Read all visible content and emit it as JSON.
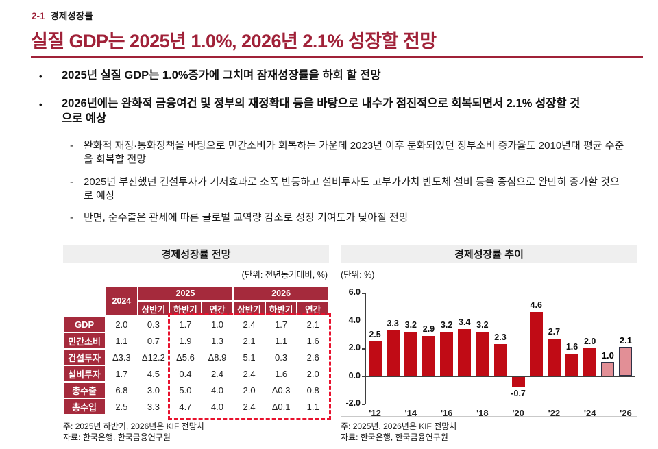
{
  "header": {
    "kicker_num": "2-1",
    "kicker_label": "경제성장률",
    "title": "실질 GDP는 2025년 1.0%, 2026년 2.1% 성장할 전망"
  },
  "bullets": [
    {
      "level": 1,
      "marker": "•",
      "text": "2025년 실질 GDP는 1.0%증가에 그치며 잠재성장률을 하회 할 전망"
    },
    {
      "level": 1,
      "marker": "•",
      "text": "2026년에는 완화적 금융여건 및 정부의 재정확대 등을 바탕으로 내수가 점진적으로 회복되면서 2.1% 성장할 것으로 예상"
    },
    {
      "level": 2,
      "marker": "-",
      "text": "완화적 재정·통화정책을 바탕으로 민간소비가 회복하는 가운데 2023년 이후 둔화되었던 정부소비 증가율도 2010년대 평균 수준을 회복할 전망"
    },
    {
      "level": 2,
      "marker": "-",
      "text": "2025년 부진했던 건설투자가 기저효과로 소폭 반등하고 설비투자도 고부가가치 반도체 설비 등을 중심으로 완만히 증가할 것으로 예상"
    },
    {
      "level": 2,
      "marker": "-",
      "text": "반면, 순수출은 관세에 따른 글로벌 교역량 감소로 성장 기여도가 낮아질 전망"
    }
  ],
  "table_panel": {
    "title": "경제성장률 전망",
    "unit": "(단위: 전년동기대비, %)",
    "col_groups": [
      {
        "label": "2024",
        "span": 1,
        "rowspan": 2
      },
      {
        "label": "2025",
        "span": 3
      },
      {
        "label": "2026",
        "span": 3
      }
    ],
    "sub_headers": [
      "상반기",
      "하반기",
      "연간",
      "상반기",
      "하반기",
      "연간"
    ],
    "rows": [
      {
        "label": "GDP",
        "values": [
          "2.0",
          "0.3",
          "1.7",
          "1.0",
          "2.4",
          "1.7",
          "2.1"
        ]
      },
      {
        "label": "민간소비",
        "values": [
          "1.1",
          "0.7",
          "1.9",
          "1.3",
          "2.1",
          "1.1",
          "1.6"
        ]
      },
      {
        "label": "건설투자",
        "values": [
          "Δ3.3",
          "Δ12.2",
          "Δ5.6",
          "Δ8.9",
          "5.1",
          "0.3",
          "2.6"
        ]
      },
      {
        "label": "설비투자",
        "values": [
          "1.7",
          "4.5",
          "0.4",
          "2.4",
          "2.4",
          "1.6",
          "2.0"
        ]
      },
      {
        "label": "총수출",
        "values": [
          "6.8",
          "3.0",
          "5.0",
          "4.0",
          "2.0",
          "Δ0.3",
          "0.8"
        ]
      },
      {
        "label": "총수입",
        "values": [
          "2.5",
          "3.3",
          "4.7",
          "4.0",
          "2.4",
          "Δ0.1",
          "1.1"
        ]
      }
    ],
    "note1": "주: 2025년 하반기, 2026년은 KIF 전망치",
    "note2": "자료: 한국은행, 한국금융연구원"
  },
  "chart_panel": {
    "title": "경제성장률 추이",
    "unit": "(단위: %)",
    "note1": "주: 2025년, 2026년은 KIF 전망치",
    "note2": "자료: 한국은행, 한국금융연구원"
  },
  "chart_data": {
    "type": "bar",
    "title": "경제성장률 추이",
    "unit_label": "(단위: %)",
    "x": [
      "'12",
      "'13",
      "'14",
      "'15",
      "'16",
      "'17",
      "'18",
      "'19",
      "'20",
      "'21",
      "'22",
      "'23",
      "'24",
      "'25",
      "'26"
    ],
    "values": [
      2.5,
      3.3,
      3.2,
      2.9,
      3.2,
      3.4,
      3.2,
      2.3,
      -0.7,
      4.6,
      2.7,
      1.6,
      2.0,
      1.0,
      2.1
    ],
    "forecast_indices": [
      13,
      14
    ],
    "xtick_shown": [
      "'12",
      "'14",
      "'16",
      "'18",
      "'20",
      "'22",
      "'24",
      "'26"
    ],
    "yticks": [
      6.0,
      4.0,
      2.0,
      0.0,
      -2.0
    ],
    "ylim": [
      -2.0,
      6.0
    ],
    "grid": "zero-line-only",
    "legend": "none"
  },
  "colors": {
    "accent_dark_red": "#a02138",
    "table_header_red": "#a52a3c",
    "dashed_box_red": "#e8112d",
    "bar_red": "#c00b15",
    "forecast_pink": "#e28f96",
    "forecast_border": "#2f3146",
    "panel_title_bg": "#efefef"
  }
}
